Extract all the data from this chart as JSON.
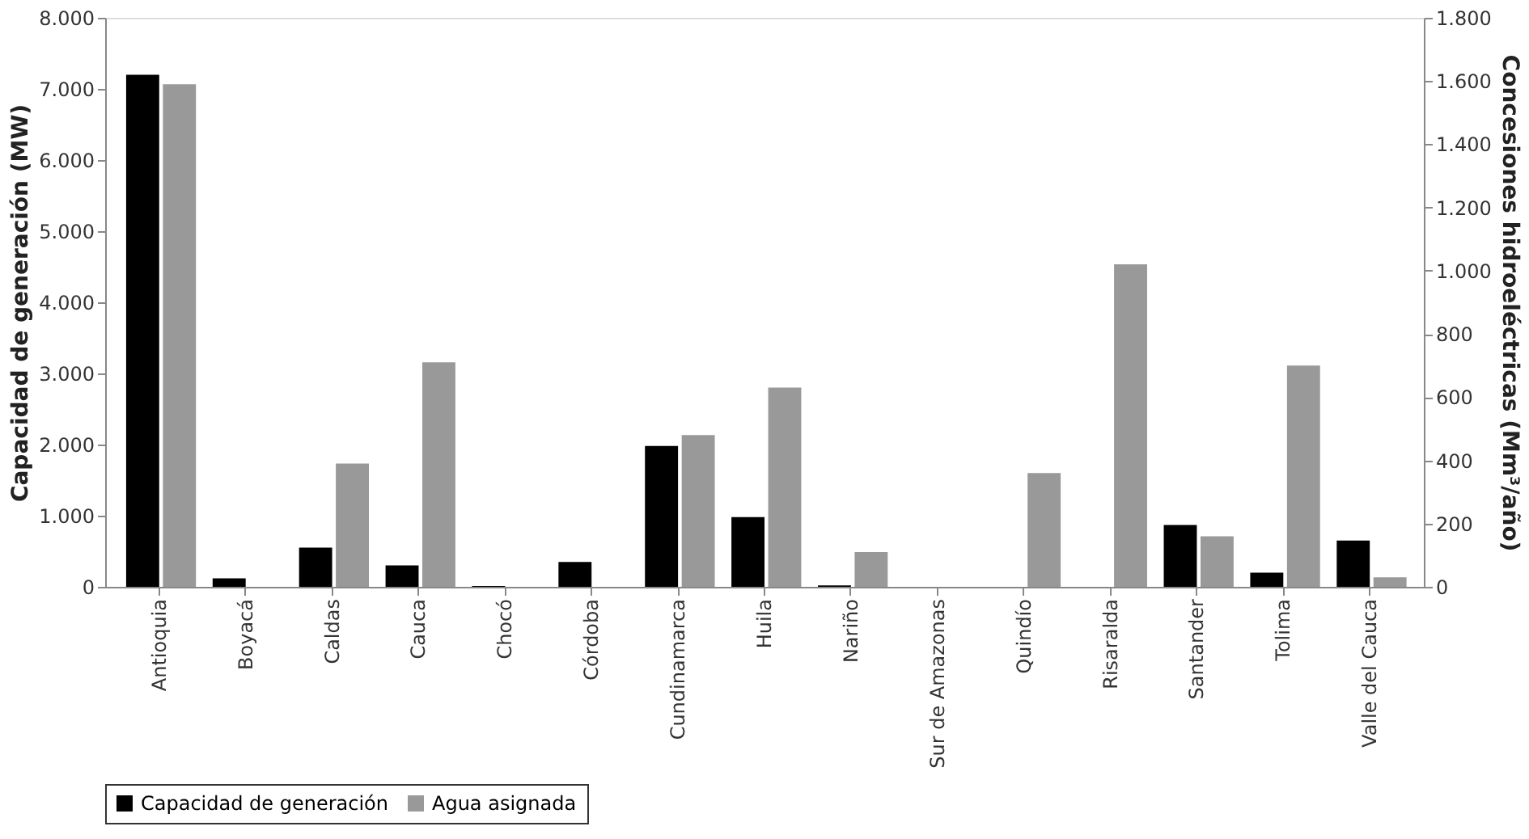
{
  "chart_data": {
    "type": "bar",
    "ylabel": "Capacidad de generación (MW)",
    "y2label": "Concesiones hidroeléctricas (Mm³/año)",
    "categories": [
      "Antioquia",
      "Boyacá",
      "Caldas",
      "Cauca",
      "Chocó",
      "Córdoba",
      "Cundinamarca",
      "Huila",
      "Nariño",
      "Sur de Amazonas",
      "Quindío",
      "Risaralda",
      "Santander",
      "Tolima",
      "Valle del Cauca"
    ],
    "series": [
      {
        "name": "Capacidad de generación",
        "color": "#000000",
        "values": [
          7200,
          120,
          550,
          300,
          10,
          350,
          1980,
          980,
          20,
          0,
          0,
          0,
          870,
          200,
          650
        ]
      },
      {
        "name": "Agua asignada",
        "color": "#999999",
        "axis": "y2",
        "values": [
          1590,
          0,
          390,
          710,
          null,
          0,
          480,
          630,
          110,
          0,
          360,
          1020,
          160,
          700,
          30
        ]
      }
    ],
    "ylim": [
      0,
      8000
    ],
    "yticks": [
      {
        "value": 0,
        "label": "0"
      },
      {
        "value": 1000,
        "label": "1.000"
      },
      {
        "value": 2000,
        "label": "2.000"
      },
      {
        "value": 3000,
        "label": "3.000"
      },
      {
        "value": 4000,
        "label": "4.000"
      },
      {
        "value": 5000,
        "label": "5.000"
      },
      {
        "value": 6000,
        "label": "6.000"
      },
      {
        "value": 7000,
        "label": "7.000"
      },
      {
        "value": 8000,
        "label": "8.000"
      }
    ],
    "y2lim": [
      0,
      1800
    ],
    "y2ticks": [
      0,
      200,
      400,
      600,
      800,
      {
        "value": 1000,
        "label": "1.000"
      },
      {
        "value": 1200,
        "label": "1.200"
      },
      {
        "value": 1400,
        "label": "1.400"
      },
      {
        "value": 1600,
        "label": "1.600"
      },
      {
        "value": 1800,
        "label": "1.800"
      }
    ],
    "grid": false,
    "legend": "bottom left"
  }
}
